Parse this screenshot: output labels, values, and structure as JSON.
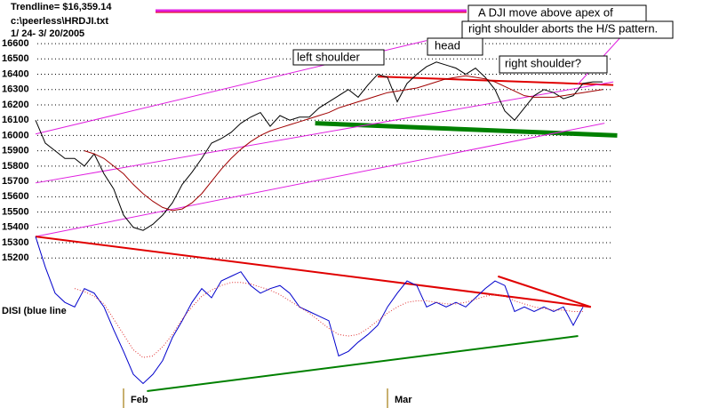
{
  "chart_data": {
    "type": "line",
    "title": "Trendline= $16,359.14",
    "subtitle": "c:\\peerless\\HRDJI.txt",
    "date_range": "1/ 24- 3/ 20/2005",
    "indicator_label": "DISI (blue line",
    "annotations": [
      "A DJI move above apex of",
      "right shoulder aborts the H/S pattern.",
      "head",
      "left shoulder",
      "right shoulder?"
    ],
    "categories": [
      null,
      null,
      null,
      null,
      null,
      null,
      null,
      null,
      null,
      "Feb",
      null,
      null,
      null,
      null,
      null,
      null,
      null,
      null,
      null,
      null,
      null,
      null,
      null,
      null,
      null,
      null,
      null,
      null,
      null,
      null,
      null,
      null,
      null,
      null,
      null,
      null,
      "Mar",
      null,
      null,
      null,
      null,
      null,
      null,
      null,
      null,
      null,
      null,
      null,
      null,
      null,
      null,
      null,
      null,
      null,
      null,
      null,
      null,
      null,
      null
    ],
    "ylim": [
      14220,
      16885
    ],
    "yticks": [
      15200,
      15300,
      15400,
      15500,
      15600,
      15700,
      15800,
      15900,
      16000,
      16100,
      16200,
      16300,
      16400,
      16500,
      16600
    ],
    "grid": true,
    "series": [
      {
        "name": "DJI",
        "color": "#000000",
        "style": "solid",
        "values": [
          16100,
          15950,
          15900,
          15850,
          15850,
          15800,
          15880,
          15750,
          15650,
          15480,
          15400,
          15380,
          15420,
          15480,
          15560,
          15680,
          15760,
          15850,
          15950,
          15980,
          16020,
          16080,
          16120,
          16150,
          16060,
          16130,
          16100,
          16120,
          16120,
          16180,
          16220,
          16260,
          16300,
          16250,
          16330,
          16400,
          16380,
          16220,
          16340,
          16400,
          16450,
          16480,
          16460,
          16440,
          16400,
          16440,
          16380,
          16300,
          16160,
          16100,
          16180,
          16260,
          16300,
          16280,
          16240,
          16260,
          16340,
          16350,
          16350
        ]
      },
      {
        "name": "DJI MA",
        "color": "#a00000",
        "style": "solid",
        "values": [
          null,
          null,
          null,
          null,
          null,
          15900,
          15880,
          15850,
          15800,
          15750,
          15680,
          15620,
          15570,
          15530,
          15510,
          15520,
          15560,
          15620,
          15700,
          15780,
          15850,
          15910,
          15960,
          16000,
          16030,
          16050,
          16070,
          16090,
          16110,
          16130,
          16150,
          16180,
          16200,
          16220,
          16240,
          16260,
          16280,
          16290,
          16300,
          16310,
          16330,
          16350,
          16370,
          16380,
          16390,
          16380,
          16370,
          16350,
          16320,
          16290,
          16260,
          16250,
          16250,
          16250,
          16260,
          16270,
          16280,
          16290,
          16300
        ]
      },
      {
        "name": "DISI",
        "color": "#0000cc",
        "style": "solid",
        "values": [
          15340,
          15140,
          14970,
          14910,
          14880,
          15000,
          14970,
          14880,
          14730,
          14590,
          14440,
          14380,
          14440,
          14530,
          14680,
          14790,
          14910,
          15000,
          14940,
          15050,
          15080,
          15110,
          15020,
          14970,
          15000,
          15020,
          14970,
          14880,
          14850,
          14820,
          14790,
          14560,
          14590,
          14650,
          14700,
          14760,
          14880,
          14970,
          15050,
          15020,
          14880,
          14910,
          14880,
          14910,
          14880,
          14940,
          15000,
          15050,
          15020,
          14850,
          14880,
          14850,
          14880,
          14850,
          14880,
          14760,
          14880,
          null,
          null
        ]
      },
      {
        "name": "DISI MA",
        "color": "#e03030",
        "style": "dotted",
        "values": [
          null,
          null,
          null,
          null,
          15000,
          14980,
          14950,
          14900,
          14800,
          14700,
          14600,
          14550,
          14560,
          14620,
          14700,
          14800,
          14880,
          14950,
          14990,
          15020,
          15040,
          15040,
          15030,
          15010,
          14990,
          14960,
          14920,
          14880,
          14840,
          14790,
          14740,
          14700,
          14690,
          14700,
          14740,
          14790,
          14840,
          14880,
          14910,
          14920,
          14920,
          14910,
          14900,
          14900,
          14910,
          14930,
          14950,
          14960,
          14950,
          14920,
          14900,
          14880,
          14870,
          14860,
          14860,
          14850,
          14850,
          null,
          null
        ]
      }
    ],
    "trendlines": [
      {
        "color": "#e00000",
        "width": 2,
        "x": [
          35,
          59.1
        ],
        "values": [
          16385,
          16330
        ]
      },
      {
        "color": "#008000",
        "width": 5,
        "x": [
          28.6,
          59.5
        ],
        "values": [
          16080,
          16000
        ]
      },
      {
        "color": "#e020e0",
        "width": 1,
        "x": [
          0,
          40
        ],
        "values": [
          16010,
          16620
        ]
      },
      {
        "color": "#e020e0",
        "width": 1,
        "x": [
          0,
          59.1
        ],
        "values": [
          15690,
          16350
        ]
      },
      {
        "color": "#e020e0",
        "width": 1,
        "x": [
          0,
          58.2
        ],
        "values": [
          15340,
          16080
        ]
      },
      {
        "color": "#e00000",
        "width": 2,
        "x": [
          0,
          56.8
        ],
        "values": [
          15340,
          14880
        ]
      },
      {
        "color": "#e00000",
        "width": 2,
        "x": [
          47.3,
          56.8
        ],
        "values": [
          15080,
          14880
        ]
      },
      {
        "color": "#008000",
        "width": 2,
        "x": [
          11.4,
          55.5
        ],
        "values": [
          14330,
          14690
        ]
      }
    ]
  }
}
